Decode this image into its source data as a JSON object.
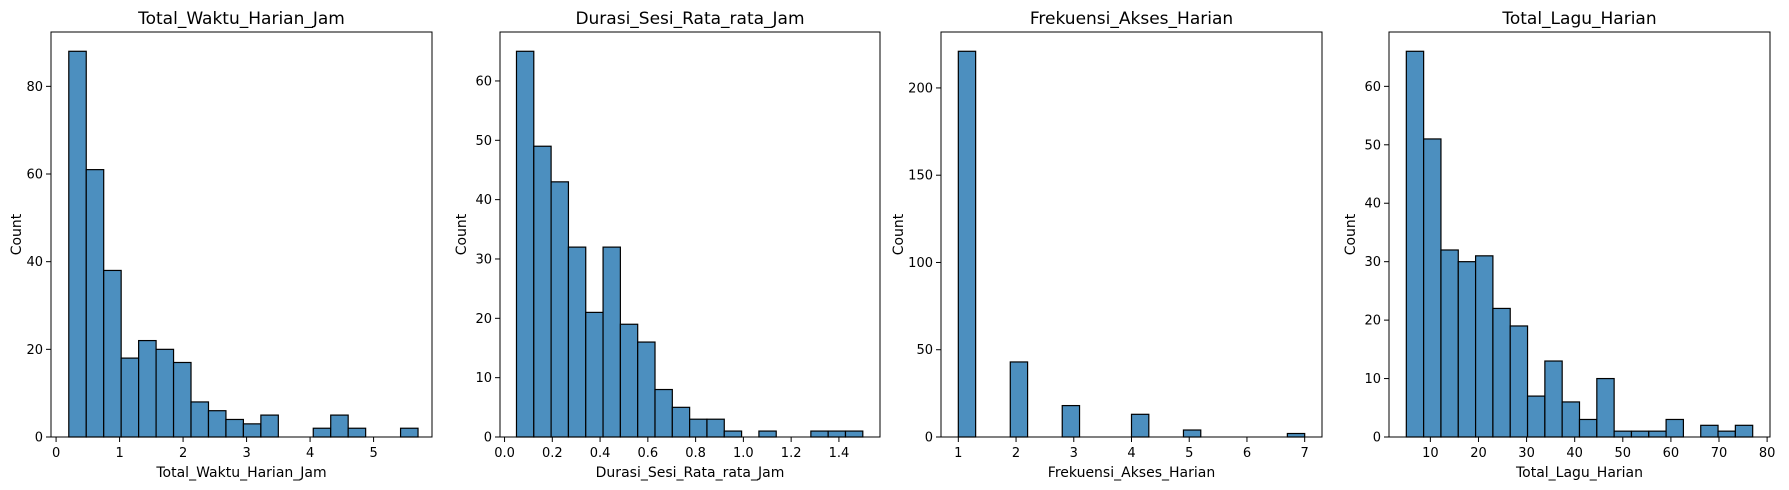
{
  "style": {
    "bar_fill": "#4c8fbf",
    "bar_stroke": "#000000",
    "axis_color": "#000000"
  },
  "chart_data": [
    {
      "type": "bar",
      "title": "Total_Waktu_Harian_Jam",
      "xlabel": "Total_Waktu_Harian_Jam",
      "ylabel": "Count",
      "xlim": [
        -0.08,
        5.92
      ],
      "ylim": [
        0,
        92.4
      ],
      "xticks": [
        "0",
        "1",
        "2",
        "3",
        "4",
        "5"
      ],
      "xtick_values": [
        0,
        1,
        2,
        3,
        4,
        5
      ],
      "yticks": [
        "0",
        "20",
        "40",
        "60",
        "80"
      ],
      "ytick_values": [
        0,
        20,
        40,
        60,
        80
      ],
      "bin_edges": [
        0.2,
        0.475,
        0.75,
        1.025,
        1.3,
        1.575,
        1.85,
        2.125,
        2.4,
        2.675,
        2.95,
        3.225,
        3.5,
        3.775,
        4.05,
        4.325,
        4.6,
        4.875,
        5.15,
        5.425,
        5.7
      ],
      "values": [
        88,
        61,
        38,
        18,
        22,
        20,
        17,
        8,
        6,
        4,
        3,
        5,
        0,
        0,
        2,
        5,
        2,
        0,
        0,
        2
      ]
    },
    {
      "type": "bar",
      "title": "Durasi_Sesi_Rata_rata_Jam",
      "xlabel": "Durasi_Sesi_Rata_rata_Jam",
      "ylabel": "Count",
      "xlim": [
        -0.019,
        1.572
      ],
      "ylim": [
        0,
        68.25
      ],
      "xticks": [
        "0.0",
        "0.2",
        "0.4",
        "0.6",
        "0.8",
        "1.0",
        "1.2",
        "1.4"
      ],
      "xtick_values": [
        0,
        0.2,
        0.4,
        0.6,
        0.8,
        1.0,
        1.2,
        1.4
      ],
      "yticks": [
        "0",
        "10",
        "20",
        "30",
        "40",
        "50",
        "60"
      ],
      "ytick_values": [
        0,
        10,
        20,
        30,
        40,
        50,
        60
      ],
      "bin_edges": [
        0.05,
        0.1225,
        0.195,
        0.2675,
        0.34,
        0.4125,
        0.485,
        0.5575,
        0.63,
        0.7025,
        0.775,
        0.8475,
        0.92,
        0.9925,
        1.065,
        1.1375,
        1.21,
        1.2825,
        1.355,
        1.4275,
        1.5
      ],
      "values": [
        65,
        49,
        43,
        32,
        21,
        32,
        19,
        16,
        8,
        5,
        3,
        3,
        1,
        0,
        1,
        0,
        0,
        1,
        1,
        1
      ]
    },
    {
      "type": "bar",
      "title": "Frekuensi_Akses_Harian",
      "xlabel": "Frekuensi_Akses_Harian",
      "ylabel": "Count",
      "xlim": [
        0.7,
        7.3
      ],
      "ylim": [
        0,
        232.05
      ],
      "xticks": [
        "1",
        "2",
        "3",
        "4",
        "5",
        "6",
        "7"
      ],
      "xtick_values": [
        1,
        2,
        3,
        4,
        5,
        6,
        7
      ],
      "yticks": [
        "0",
        "50",
        "100",
        "150",
        "200"
      ],
      "ytick_values": [
        0,
        50,
        100,
        150,
        200
      ],
      "bin_edges": [
        1,
        1.3,
        1.6,
        1.9,
        2.2,
        2.5,
        2.8,
        3.1,
        3.4,
        3.7,
        4.0,
        4.3,
        4.6,
        4.9,
        5.2,
        5.5,
        5.8,
        6.1,
        6.4,
        6.7,
        7.0
      ],
      "values": [
        221,
        0,
        0,
        43,
        0,
        0,
        18,
        0,
        0,
        0,
        13,
        0,
        0,
        4,
        0,
        0,
        0,
        0,
        0,
        2
      ]
    },
    {
      "type": "bar",
      "title": "Total_Lagu_Harian",
      "xlabel": "Total_Lagu_Harian",
      "ylabel": "Count",
      "xlim": [
        1.4,
        80.6
      ],
      "ylim": [
        0,
        69.3
      ],
      "xticks": [
        "10",
        "20",
        "30",
        "40",
        "50",
        "60",
        "70",
        "80"
      ],
      "xtick_values": [
        10,
        20,
        30,
        40,
        50,
        60,
        70,
        80
      ],
      "yticks": [
        "0",
        "10",
        "20",
        "30",
        "40",
        "50",
        "60"
      ],
      "ytick_values": [
        0,
        10,
        20,
        30,
        40,
        50,
        60
      ],
      "bin_edges": [
        5,
        8.6,
        12.2,
        15.8,
        19.4,
        23.0,
        26.6,
        30.2,
        33.8,
        37.4,
        41.0,
        44.6,
        48.2,
        51.8,
        55.4,
        59.0,
        62.6,
        66.2,
        69.8,
        73.4,
        77.0
      ],
      "values": [
        66,
        51,
        32,
        30,
        31,
        22,
        19,
        7,
        13,
        6,
        3,
        10,
        1,
        1,
        1,
        3,
        0,
        2,
        1,
        2
      ]
    }
  ]
}
